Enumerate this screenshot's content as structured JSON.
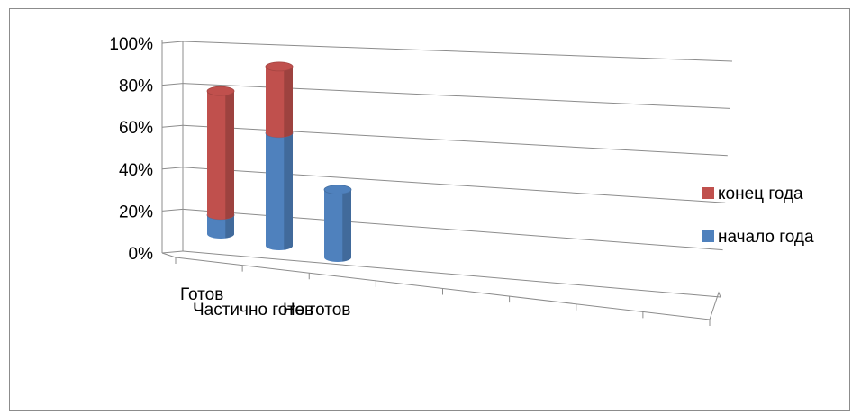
{
  "chart_data": {
    "type": "bar",
    "subtype": "3d-stacked-cylinder",
    "categories": [
      "Готов",
      "Частично готов",
      "Не готов"
    ],
    "series": [
      {
        "name": "начало года",
        "color": "#4f81bd",
        "values": [
          10,
          56,
          32
        ]
      },
      {
        "name": "конец года",
        "color": "#c0504d",
        "values": [
          65,
          33,
          0
        ]
      }
    ],
    "y_ticks": [
      "0%",
      "20%",
      "40%",
      "60%",
      "80%",
      "100%"
    ],
    "ylim": [
      0,
      100
    ],
    "grid": true,
    "legend_position": "right"
  }
}
